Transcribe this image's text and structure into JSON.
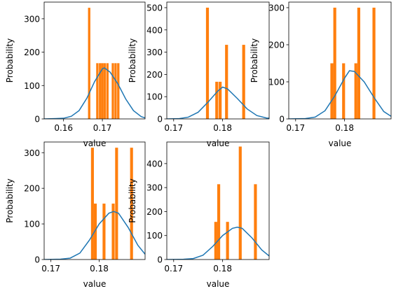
{
  "colors": {
    "bar": "#ff7f0e",
    "kde": "#1f77b4",
    "axis": "#000000"
  },
  "chart_data": [
    {
      "type": "bar",
      "xlabel": "value",
      "ylabel": "Probability",
      "xlim": [
        0.155,
        0.181
      ],
      "ylim": [
        0,
        350
      ],
      "xticks": [
        0.16,
        0.17
      ],
      "xtick_labels": [
        "0.16",
        "0.17"
      ],
      "yticks": [
        0,
        100,
        200,
        300
      ],
      "ytick_labels": [
        "0",
        "100",
        "200",
        "300"
      ],
      "bar_width": 0.0006,
      "bars": [
        {
          "x": 0.1666,
          "y": 333
        },
        {
          "x": 0.1687,
          "y": 167
        },
        {
          "x": 0.1694,
          "y": 167
        },
        {
          "x": 0.17,
          "y": 167
        },
        {
          "x": 0.1706,
          "y": 167
        },
        {
          "x": 0.1713,
          "y": 167
        },
        {
          "x": 0.1727,
          "y": 167
        },
        {
          "x": 0.1734,
          "y": 167
        },
        {
          "x": 0.1741,
          "y": 167
        }
      ],
      "kde": [
        [
          0.155,
          0
        ],
        [
          0.158,
          1
        ],
        [
          0.16,
          2
        ],
        [
          0.162,
          8
        ],
        [
          0.164,
          25
        ],
        [
          0.166,
          62
        ],
        [
          0.168,
          112
        ],
        [
          0.17,
          150
        ],
        [
          0.1705,
          153
        ],
        [
          0.172,
          140
        ],
        [
          0.174,
          105
        ],
        [
          0.176,
          60
        ],
        [
          0.178,
          25
        ],
        [
          0.18,
          7
        ],
        [
          0.181,
          3
        ]
      ]
    },
    {
      "type": "bar",
      "xlabel": "value",
      "ylabel": "Probability",
      "xlim": [
        0.1686,
        0.1895
      ],
      "ylim": [
        0,
        525
      ],
      "xticks": [
        0.17,
        0.18
      ],
      "xtick_labels": [
        "0.17",
        "0.18"
      ],
      "yticks": [
        0,
        100,
        200,
        300,
        400,
        500
      ],
      "ytick_labels": [
        "0",
        "100",
        "200",
        "300",
        "400",
        "500"
      ],
      "bar_width": 0.0006,
      "bars": [
        {
          "x": 0.1769,
          "y": 500
        },
        {
          "x": 0.1788,
          "y": 167
        },
        {
          "x": 0.1795,
          "y": 167
        },
        {
          "x": 0.1808,
          "y": 333
        },
        {
          "x": 0.1843,
          "y": 333
        }
      ],
      "kde": [
        [
          0.1686,
          0
        ],
        [
          0.171,
          1
        ],
        [
          0.173,
          8
        ],
        [
          0.175,
          30
        ],
        [
          0.177,
          75
        ],
        [
          0.179,
          125
        ],
        [
          0.18,
          143
        ],
        [
          0.181,
          135
        ],
        [
          0.183,
          92
        ],
        [
          0.185,
          45
        ],
        [
          0.187,
          15
        ],
        [
          0.189,
          4
        ],
        [
          0.1895,
          3
        ]
      ]
    },
    {
      "type": "bar",
      "xlabel": "value",
      "ylabel": "Probability",
      "xlim": [
        0.1686,
        0.1895
      ],
      "ylim": [
        0,
        315
      ],
      "xticks": [
        0.17,
        0.18
      ],
      "xtick_labels": [
        "0.17",
        "0.18"
      ],
      "yticks": [
        0,
        100,
        200,
        300
      ],
      "ytick_labels": [
        "0",
        "100",
        "200",
        "300"
      ],
      "bar_width": 0.0006,
      "bars": [
        {
          "x": 0.1774,
          "y": 150
        },
        {
          "x": 0.178,
          "y": 300
        },
        {
          "x": 0.1798,
          "y": 150
        },
        {
          "x": 0.1823,
          "y": 150
        },
        {
          "x": 0.1829,
          "y": 300
        },
        {
          "x": 0.186,
          "y": 300
        }
      ],
      "kde": [
        [
          0.1686,
          0
        ],
        [
          0.172,
          1
        ],
        [
          0.174,
          5
        ],
        [
          0.176,
          22
        ],
        [
          0.178,
          62
        ],
        [
          0.18,
          110
        ],
        [
          0.181,
          130
        ],
        [
          0.182,
          128
        ],
        [
          0.184,
          100
        ],
        [
          0.186,
          58
        ],
        [
          0.188,
          20
        ],
        [
          0.1895,
          7
        ]
      ]
    },
    {
      "type": "bar",
      "xlabel": "value",
      "ylabel": "Probability",
      "xlim": [
        0.1686,
        0.1895
      ],
      "ylim": [
        0,
        330
      ],
      "xticks": [
        0.17,
        0.18
      ],
      "xtick_labels": [
        "0.17",
        "0.18"
      ],
      "yticks": [
        0,
        100,
        200,
        300
      ],
      "ytick_labels": [
        "0",
        "100",
        "200",
        "300"
      ],
      "bar_width": 0.0006,
      "bars": [
        {
          "x": 0.1786,
          "y": 314
        },
        {
          "x": 0.1792,
          "y": 157
        },
        {
          "x": 0.181,
          "y": 157
        },
        {
          "x": 0.1829,
          "y": 157
        },
        {
          "x": 0.1836,
          "y": 314
        },
        {
          "x": 0.1867,
          "y": 314
        }
      ],
      "kde": [
        [
          0.1686,
          0
        ],
        [
          0.172,
          1
        ],
        [
          0.174,
          4
        ],
        [
          0.176,
          18
        ],
        [
          0.178,
          55
        ],
        [
          0.18,
          100
        ],
        [
          0.182,
          130
        ],
        [
          0.183,
          135
        ],
        [
          0.184,
          130
        ],
        [
          0.186,
          90
        ],
        [
          0.188,
          40
        ],
        [
          0.1895,
          15
        ]
      ]
    },
    {
      "type": "bar",
      "xlabel": "value",
      "ylabel": "Probability",
      "xlim": [
        0.1686,
        0.1895
      ],
      "ylim": [
        0,
        490
      ],
      "xticks": [
        0.17,
        0.18
      ],
      "xtick_labels": [
        "0.17",
        "0.18"
      ],
      "yticks": [
        0,
        100,
        200,
        300,
        400
      ],
      "ytick_labels": [
        "0",
        "100",
        "200",
        "300",
        "400"
      ],
      "bar_width": 0.0006,
      "bars": [
        {
          "x": 0.1786,
          "y": 157
        },
        {
          "x": 0.1792,
          "y": 314
        },
        {
          "x": 0.181,
          "y": 157
        },
        {
          "x": 0.1836,
          "y": 471
        },
        {
          "x": 0.1867,
          "y": 314
        }
      ],
      "kde": [
        [
          0.1686,
          0
        ],
        [
          0.172,
          1
        ],
        [
          0.174,
          4
        ],
        [
          0.176,
          18
        ],
        [
          0.178,
          55
        ],
        [
          0.18,
          100
        ],
        [
          0.182,
          130
        ],
        [
          0.183,
          135
        ],
        [
          0.184,
          130
        ],
        [
          0.186,
          90
        ],
        [
          0.188,
          40
        ],
        [
          0.1895,
          15
        ]
      ]
    }
  ]
}
